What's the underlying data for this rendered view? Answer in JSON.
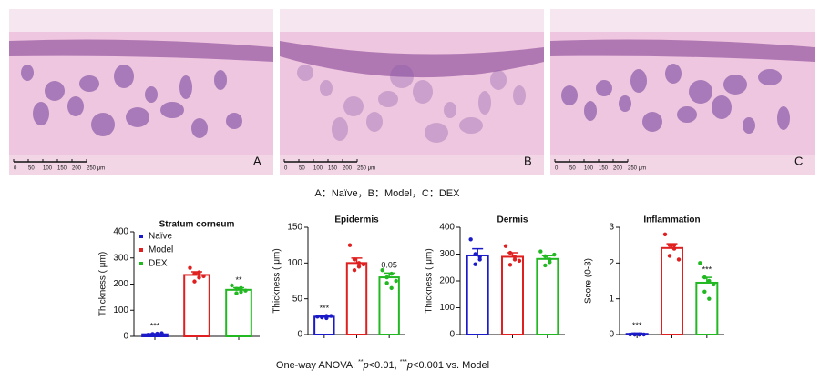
{
  "figure": {
    "panels": [
      {
        "label": "A"
      },
      {
        "label": "B"
      },
      {
        "label": "C"
      }
    ],
    "scale_labels": [
      "0",
      "50",
      "100",
      "150",
      "200",
      "250 μm"
    ],
    "caption": "A：Naïve，B：Model，C：DEX",
    "footnote": [
      "One-way ANOVA: ",
      "**",
      "p",
      "<0.01, ",
      "***",
      "p",
      "<0.001 vs. Model"
    ]
  },
  "chart_data": [
    {
      "type": "bar",
      "title": "Stratum corneum",
      "y_label": "Thickness ( μm)",
      "categories": [
        null,
        null,
        null
      ],
      "colors": [
        "#1a1ac8",
        "#e02020",
        "#22b822"
      ],
      "values": [
        8,
        235,
        178
      ],
      "errors": [
        2,
        12,
        8
      ],
      "points": [
        [
          6,
          8,
          10,
          9,
          7,
          12
        ],
        [
          262,
          240,
          225,
          210,
          245,
          230
        ],
        [
          195,
          182,
          170,
          165,
          185,
          175
        ]
      ],
      "annotations": [
        "***",
        null,
        "**"
      ],
      "legend": [
        "Naïve",
        "Model",
        "DEX"
      ],
      "ylim": [
        0,
        400
      ],
      "yticks": [
        0,
        100,
        200,
        300,
        400
      ]
    },
    {
      "type": "bar",
      "title": "Epidermis",
      "y_label": "Thickness ( μm)",
      "categories": [
        null,
        null,
        null
      ],
      "colors": [
        "#1a1ac8",
        "#e02020",
        "#22b822"
      ],
      "values": [
        25,
        100,
        80
      ],
      "errors": [
        1,
        7,
        6
      ],
      "points": [
        [
          25,
          24,
          26,
          25,
          23,
          26
        ],
        [
          125,
          105,
          95,
          90,
          100,
          98
        ],
        [
          90,
          72,
          65,
          80,
          85,
          75
        ]
      ],
      "annotations": [
        "***",
        null,
        "0.05"
      ],
      "ylim": [
        0,
        150
      ],
      "yticks": [
        0,
        50,
        100,
        150
      ]
    },
    {
      "type": "bar",
      "title": "Dermis",
      "y_label": "Thickness ( μm)",
      "categories": [
        null,
        null,
        null
      ],
      "colors": [
        "#1a1ac8",
        "#e02020",
        "#22b822"
      ],
      "values": [
        295,
        290,
        282
      ],
      "errors": [
        25,
        15,
        12
      ],
      "points": [
        [
          355,
          300,
          280,
          262,
          290
        ],
        [
          330,
          305,
          280,
          260,
          290,
          275
        ],
        [
          310,
          292,
          270,
          258,
          280,
          298
        ]
      ],
      "annotations": [
        null,
        null,
        null
      ],
      "ylim": [
        0,
        400
      ],
      "yticks": [
        0,
        100,
        200,
        300,
        400
      ]
    },
    {
      "type": "bar",
      "title": "Inflammation",
      "y_label": "Score (0-3)",
      "categories": [
        null,
        null,
        null
      ],
      "colors": [
        "#1a1ac8",
        "#e02020",
        "#22b822"
      ],
      "values": [
        0.02,
        2.42,
        1.45
      ],
      "errors": [
        0.02,
        0.12,
        0.15
      ],
      "points": [
        [
          0,
          0,
          0,
          0,
          0,
          0
        ],
        [
          2.8,
          2.5,
          2.4,
          2.2,
          2.5,
          2.1
        ],
        [
          2,
          1.6,
          1.5,
          1.2,
          1.0,
          1.4
        ]
      ],
      "annotations": [
        "***",
        null,
        "***"
      ],
      "ylim": [
        0,
        3
      ],
      "yticks": [
        0,
        1,
        2,
        3
      ]
    }
  ]
}
